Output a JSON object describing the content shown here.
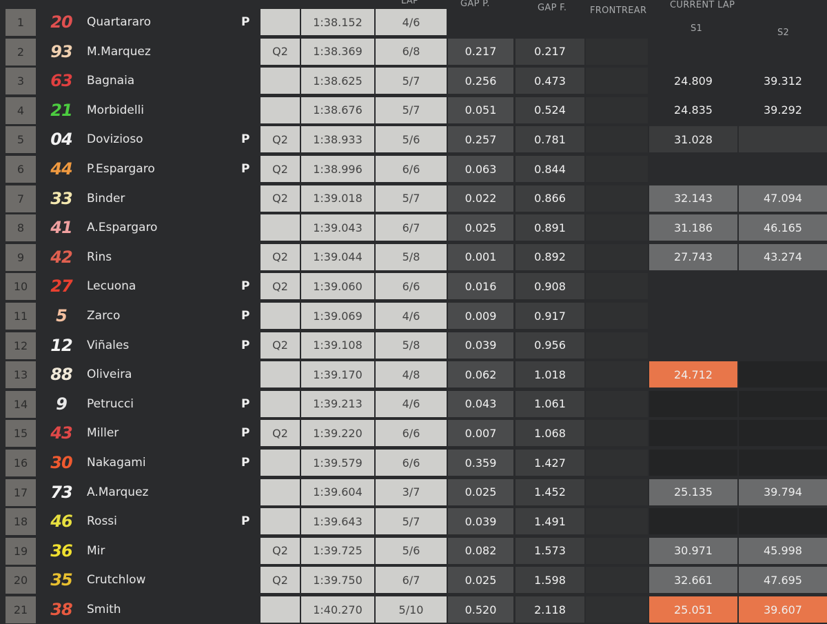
{
  "header": {
    "lap": "LAP",
    "gap_p": "GAP P.",
    "gap_f": "GAP F.",
    "frontrear": "FRONTREAR",
    "current_lap": "CURRENT LAP",
    "s1": "S1",
    "s2": "S2"
  },
  "colors": {
    "orange": "#e8764a",
    "gray": "#6a6b6c",
    "light": "#cfcfcc"
  },
  "rows": [
    {
      "pos": "1",
      "num": "20",
      "num_color": "#e05050",
      "name": "Quartararo",
      "p": "P",
      "q2": "",
      "time": "1:38.152",
      "lap": "4/6",
      "gap_p": "",
      "gap_f": "",
      "s1": "",
      "s2": "",
      "s1_style": "none",
      "s2_style": "none"
    },
    {
      "pos": "2",
      "num": "93",
      "num_color": "#f0d0b0",
      "name": "M.Marquez",
      "p": "",
      "q2": "Q2",
      "time": "1:38.369",
      "lap": "6/8",
      "gap_p": "0.217",
      "gap_f": "0.217",
      "s1": "",
      "s2": "",
      "s1_style": "none",
      "s2_style": "none"
    },
    {
      "pos": "3",
      "num": "63",
      "num_color": "#e04040",
      "name": "Bagnaia",
      "p": "",
      "q2": "",
      "time": "1:38.625",
      "lap": "5/7",
      "gap_p": "0.256",
      "gap_f": "0.473",
      "s1": "24.809",
      "s2": "39.312",
      "s1_style": "none",
      "s2_style": "none"
    },
    {
      "pos": "4",
      "num": "21",
      "num_color": "#4ccc40",
      "name": "Morbidelli",
      "p": "",
      "q2": "",
      "time": "1:38.676",
      "lap": "5/7",
      "gap_p": "0.051",
      "gap_f": "0.524",
      "s1": "24.835",
      "s2": "39.292",
      "s1_style": "none",
      "s2_style": "none"
    },
    {
      "pos": "5",
      "num": "04",
      "num_color": "#f2f2f2",
      "name": "Dovizioso",
      "p": "P",
      "q2": "Q2",
      "time": "1:38.933",
      "lap": "5/6",
      "gap_p": "0.257",
      "gap_f": "0.781",
      "s1": "31.028",
      "s2": "",
      "s1_style": "dark",
      "s2_style": "dark"
    },
    {
      "pos": "6",
      "num": "44",
      "num_color": "#f09a40",
      "name": "P.Espargaro",
      "p": "P",
      "q2": "Q2",
      "time": "1:38.996",
      "lap": "6/6",
      "gap_p": "0.063",
      "gap_f": "0.844",
      "s1": "",
      "s2": "",
      "s1_style": "none",
      "s2_style": "none"
    },
    {
      "pos": "7",
      "num": "33",
      "num_color": "#f4e8b0",
      "name": "Binder",
      "p": "",
      "q2": "Q2",
      "time": "1:39.018",
      "lap": "5/7",
      "gap_p": "0.022",
      "gap_f": "0.866",
      "s1": "32.143",
      "s2": "47.094",
      "s1_style": "gray",
      "s2_style": "gray"
    },
    {
      "pos": "8",
      "num": "41",
      "num_color": "#f0a0a0",
      "name": "A.Espargaro",
      "p": "",
      "q2": "",
      "time": "1:39.043",
      "lap": "6/7",
      "gap_p": "0.025",
      "gap_f": "0.891",
      "s1": "31.186",
      "s2": "46.165",
      "s1_style": "gray",
      "s2_style": "gray"
    },
    {
      "pos": "9",
      "num": "42",
      "num_color": "#e06050",
      "name": "Rins",
      "p": "",
      "q2": "Q2",
      "time": "1:39.044",
      "lap": "5/8",
      "gap_p": "0.001",
      "gap_f": "0.892",
      "s1": "27.743",
      "s2": "43.274",
      "s1_style": "gray",
      "s2_style": "gray"
    },
    {
      "pos": "10",
      "num": "27",
      "num_color": "#e84030",
      "name": "Lecuona",
      "p": "P",
      "q2": "Q2",
      "time": "1:39.060",
      "lap": "6/6",
      "gap_p": "0.016",
      "gap_f": "0.908",
      "s1": "",
      "s2": "",
      "s1_style": "none",
      "s2_style": "none"
    },
    {
      "pos": "11",
      "num": "5",
      "num_color": "#f4c0a0",
      "name": "Zarco",
      "p": "P",
      "q2": "",
      "time": "1:39.069",
      "lap": "4/6",
      "gap_p": "0.009",
      "gap_f": "0.917",
      "s1": "",
      "s2": "",
      "s1_style": "none",
      "s2_style": "none"
    },
    {
      "pos": "12",
      "num": "12",
      "num_color": "#f4f4f4",
      "name": "Viñales",
      "p": "P",
      "q2": "Q2",
      "time": "1:39.108",
      "lap": "5/8",
      "gap_p": "0.039",
      "gap_f": "0.956",
      "s1": "",
      "s2": "",
      "s1_style": "none",
      "s2_style": "none"
    },
    {
      "pos": "13",
      "num": "88",
      "num_color": "#f0e8d8",
      "name": "Oliveira",
      "p": "",
      "q2": "",
      "time": "1:39.170",
      "lap": "4/8",
      "gap_p": "0.062",
      "gap_f": "1.018",
      "s1": "24.712",
      "s2": "",
      "s1_style": "orange",
      "s2_style": "black"
    },
    {
      "pos": "14",
      "num": "9",
      "num_color": "#e8e8e8",
      "name": "Petrucci",
      "p": "P",
      "q2": "",
      "time": "1:39.213",
      "lap": "4/6",
      "gap_p": "0.043",
      "gap_f": "1.061",
      "s1": "",
      "s2": "",
      "s1_style": "black",
      "s2_style": "black"
    },
    {
      "pos": "15",
      "num": "43",
      "num_color": "#e04848",
      "name": "Miller",
      "p": "P",
      "q2": "Q2",
      "time": "1:39.220",
      "lap": "6/6",
      "gap_p": "0.007",
      "gap_f": "1.068",
      "s1": "",
      "s2": "",
      "s1_style": "black",
      "s2_style": "black"
    },
    {
      "pos": "16",
      "num": "30",
      "num_color": "#f05a30",
      "name": "Nakagami",
      "p": "P",
      "q2": "",
      "time": "1:39.579",
      "lap": "6/6",
      "gap_p": "0.359",
      "gap_f": "1.427",
      "s1": "",
      "s2": "",
      "s1_style": "black",
      "s2_style": "black"
    },
    {
      "pos": "17",
      "num": "73",
      "num_color": "#f4f4f4",
      "name": "A.Marquez",
      "p": "",
      "q2": "",
      "time": "1:39.604",
      "lap": "3/7",
      "gap_p": "0.025",
      "gap_f": "1.452",
      "s1": "25.135",
      "s2": "39.794",
      "s1_style": "gray",
      "s2_style": "gray"
    },
    {
      "pos": "18",
      "num": "46",
      "num_color": "#e8e040",
      "name": "Rossi",
      "p": "P",
      "q2": "",
      "time": "1:39.643",
      "lap": "5/7",
      "gap_p": "0.039",
      "gap_f": "1.491",
      "s1": "",
      "s2": "",
      "s1_style": "black",
      "s2_style": "black"
    },
    {
      "pos": "19",
      "num": "36",
      "num_color": "#f0e030",
      "name": "Mir",
      "p": "",
      "q2": "Q2",
      "time": "1:39.725",
      "lap": "5/6",
      "gap_p": "0.082",
      "gap_f": "1.573",
      "s1": "30.971",
      "s2": "45.998",
      "s1_style": "gray",
      "s2_style": "gray"
    },
    {
      "pos": "20",
      "num": "35",
      "num_color": "#e8c030",
      "name": "Crutchlow",
      "p": "",
      "q2": "Q2",
      "time": "1:39.750",
      "lap": "6/7",
      "gap_p": "0.025",
      "gap_f": "1.598",
      "s1": "32.661",
      "s2": "47.695",
      "s1_style": "gray",
      "s2_style": "gray"
    },
    {
      "pos": "21",
      "num": "38",
      "num_color": "#e85a40",
      "name": "Smith",
      "p": "",
      "q2": "",
      "time": "1:40.270",
      "lap": "5/10",
      "gap_p": "0.520",
      "gap_f": "2.118",
      "s1": "25.051",
      "s2": "39.607",
      "s1_style": "orange",
      "s2_style": "orange"
    }
  ]
}
